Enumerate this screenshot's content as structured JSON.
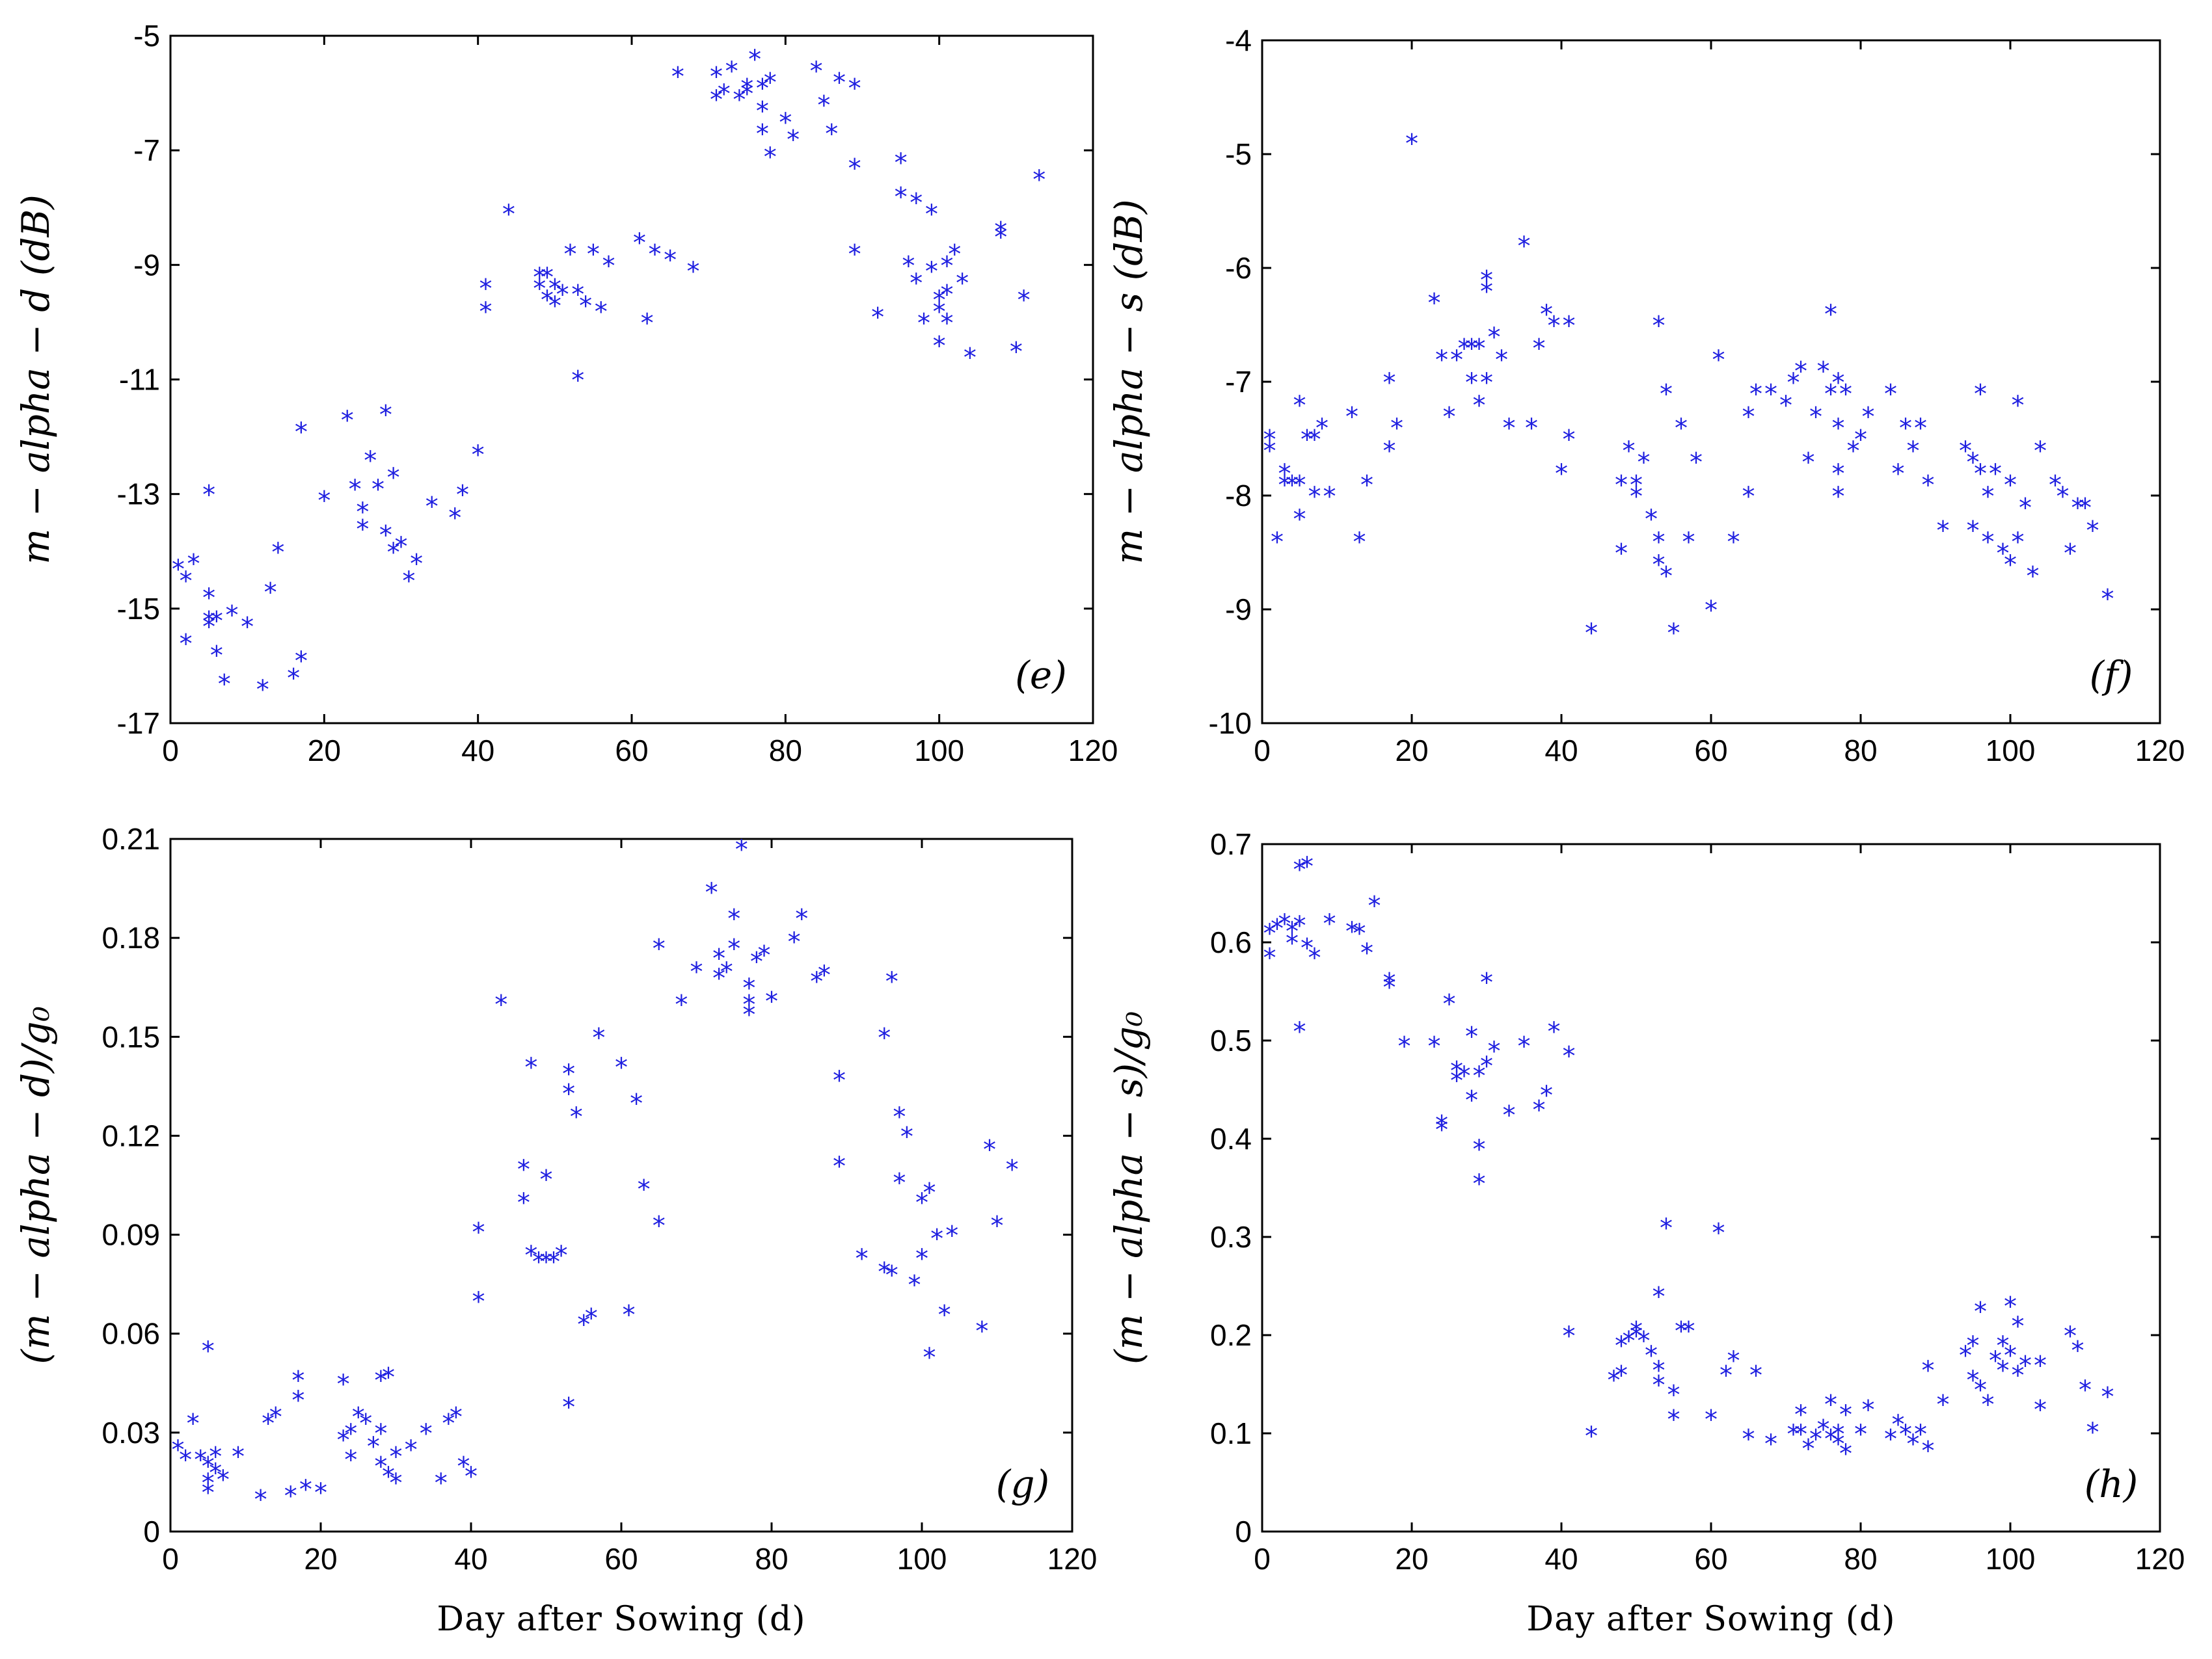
{
  "colors": {
    "marker": "#1f1fe0",
    "axis": "#000000"
  },
  "chart_data": [
    {
      "id": "e",
      "type": "scatter",
      "panel_label": "(e)",
      "ylabel": "m − alpha − d  (dB)",
      "xlabel": "",
      "xlim": [
        0,
        120
      ],
      "ylim": [
        -17,
        -5
      ],
      "xticks": [
        "0",
        "20",
        "40",
        "60",
        "80",
        "100",
        "120"
      ],
      "yticks": [
        "-17",
        "-15",
        "-13",
        "-11",
        "-9",
        "-7",
        "-5"
      ],
      "series": [
        {
          "name": "m-alpha-d",
          "marker": "*",
          "x": [
            1,
            2,
            2,
            3,
            5,
            5,
            5,
            5,
            6,
            6,
            7,
            8,
            10,
            12,
            13,
            14,
            16,
            17,
            17,
            20,
            23,
            24,
            25,
            25,
            26,
            27,
            28,
            28,
            29,
            29,
            30,
            31,
            32,
            34,
            37,
            38,
            40,
            41,
            41,
            44,
            48,
            48,
            49,
            49,
            50,
            50,
            51,
            52,
            53,
            53,
            54,
            55,
            56,
            57,
            61,
            62,
            63,
            65,
            66,
            68,
            71,
            71,
            72,
            73,
            74,
            75,
            75,
            76,
            77,
            77,
            77,
            78,
            78,
            80,
            81,
            84,
            85,
            86,
            87,
            89,
            89,
            89,
            92,
            95,
            95,
            96,
            97,
            97,
            98,
            99,
            99,
            100,
            100,
            100,
            101,
            101,
            101,
            102,
            103,
            104,
            108,
            108,
            110,
            111,
            113
          ],
          "y": [
            -14.3,
            -14.5,
            -15.6,
            -14.2,
            -15.2,
            -15.3,
            -13.0,
            -14.8,
            -15.8,
            -15.2,
            -16.3,
            -15.1,
            -15.3,
            -16.4,
            -14.7,
            -14.0,
            -16.2,
            -15.9,
            -11.9,
            -13.1,
            -11.7,
            -12.9,
            -13.3,
            -13.6,
            -12.4,
            -12.9,
            -11.6,
            -13.7,
            -12.7,
            -14.0,
            -13.9,
            -14.5,
            -14.2,
            -13.2,
            -13.4,
            -13.0,
            -12.3,
            -9.4,
            -9.8,
            -8.1,
            -9.2,
            -9.4,
            -9.6,
            -9.2,
            -9.4,
            -9.7,
            -9.5,
            -8.8,
            -9.5,
            -11.0,
            -9.7,
            -8.8,
            -9.8,
            -9.0,
            -8.6,
            -10.0,
            -8.8,
            -8.9,
            -5.7,
            -9.1,
            -6.1,
            -5.7,
            -6.0,
            -5.6,
            -6.1,
            -5.9,
            -6.0,
            -5.4,
            -5.9,
            -6.3,
            -6.7,
            -7.1,
            -5.8,
            -6.5,
            -6.8,
            -5.6,
            -6.2,
            -6.7,
            -5.8,
            -5.9,
            -7.3,
            -8.8,
            -9.9,
            -7.2,
            -7.8,
            -9.0,
            -7.9,
            -9.3,
            -10.0,
            -8.1,
            -9.1,
            -9.6,
            -9.8,
            -10.4,
            -9.0,
            -9.5,
            -10.0,
            -8.8,
            -9.3,
            -10.6,
            -8.5,
            -8.4,
            -10.5,
            -9.6,
            -7.5
          ]
        }
      ]
    },
    {
      "id": "f",
      "type": "scatter",
      "panel_label": "(f)",
      "ylabel": "m − alpha − s  (dB)",
      "xlabel": "",
      "xlim": [
        0,
        120
      ],
      "ylim": [
        -10,
        -4
      ],
      "xticks": [
        "0",
        "20",
        "40",
        "60",
        "80",
        "100",
        "120"
      ],
      "yticks": [
        "-10",
        "-9",
        "-8",
        "-7",
        "-6",
        "-5",
        "-4"
      ],
      "series": [
        {
          "name": "m-alpha-s",
          "marker": "*",
          "x": [
            1,
            1,
            2,
            3,
            3,
            4,
            5,
            5,
            5,
            6,
            7,
            7,
            8,
            9,
            12,
            13,
            14,
            17,
            17,
            18,
            20,
            23,
            24,
            25,
            26,
            27,
            28,
            28,
            29,
            29,
            30,
            30,
            30,
            31,
            32,
            33,
            35,
            36,
            37,
            38,
            39,
            40,
            41,
            41,
            44,
            48,
            48,
            49,
            50,
            50,
            51,
            52,
            53,
            53,
            53,
            54,
            54,
            55,
            56,
            57,
            58,
            60,
            61,
            63,
            65,
            65,
            66,
            68,
            70,
            71,
            72,
            73,
            74,
            75,
            76,
            76,
            77,
            77,
            77,
            77,
            78,
            79,
            80,
            81,
            84,
            85,
            86,
            87,
            88,
            89,
            91,
            94,
            95,
            95,
            96,
            96,
            97,
            97,
            98,
            99,
            100,
            100,
            101,
            101,
            102,
            103,
            104,
            106,
            107,
            108,
            109,
            110,
            111,
            113
          ],
          "y": [
            -7.5,
            -7.6,
            -8.4,
            -7.9,
            -7.8,
            -7.9,
            -7.2,
            -8.2,
            -7.9,
            -7.5,
            -8.0,
            -7.5,
            -7.4,
            -8.0,
            -7.3,
            -8.4,
            -7.9,
            -7.0,
            -7.6,
            -7.4,
            -4.9,
            -6.3,
            -6.8,
            -7.3,
            -6.8,
            -6.7,
            -7.0,
            -6.7,
            -6.7,
            -7.2,
            -6.1,
            -6.2,
            -7.0,
            -6.6,
            -6.8,
            -7.4,
            -5.8,
            -7.4,
            -6.7,
            -6.4,
            -6.5,
            -7.8,
            -7.5,
            -6.5,
            -9.2,
            -7.9,
            -8.5,
            -7.6,
            -7.9,
            -8.0,
            -7.7,
            -8.2,
            -8.4,
            -8.6,
            -6.5,
            -8.7,
            -7.1,
            -9.2,
            -7.4,
            -8.4,
            -7.7,
            -9.0,
            -6.8,
            -8.4,
            -7.3,
            -8.0,
            -7.1,
            -7.1,
            -7.2,
            -7.0,
            -6.9,
            -7.7,
            -7.3,
            -6.9,
            -6.4,
            -7.1,
            -7.4,
            -7.8,
            -8.0,
            -7.0,
            -7.1,
            -7.6,
            -7.5,
            -7.3,
            -7.1,
            -7.8,
            -7.4,
            -7.6,
            -7.4,
            -7.9,
            -8.3,
            -7.6,
            -7.7,
            -8.3,
            -7.1,
            -7.8,
            -8.0,
            -8.4,
            -7.8,
            -8.5,
            -7.9,
            -8.6,
            -7.2,
            -8.4,
            -8.1,
            -8.7,
            -7.6,
            -7.9,
            -8.0,
            -8.5,
            -8.1,
            -8.1,
            -8.3,
            -8.9
          ]
        }
      ]
    },
    {
      "id": "g",
      "type": "scatter",
      "panel_label": "(g)",
      "ylabel": "(m − alpha − d)/g₀",
      "xlabel": "Day  after  Sowing  (d)",
      "xlim": [
        0,
        120
      ],
      "ylim": [
        0,
        0.21
      ],
      "xticks": [
        "0",
        "20",
        "40",
        "60",
        "80",
        "100",
        "120"
      ],
      "yticks": [
        "0",
        "0.03",
        "0.06",
        "0.09",
        "0.12",
        "0.15",
        "0.18",
        "0.21"
      ],
      "series": [
        {
          "name": "(m-alpha-d)/g0",
          "marker": "*",
          "x": [
            1,
            2,
            3,
            4,
            5,
            5,
            5,
            5,
            6,
            6,
            7,
            9,
            12,
            13,
            14,
            16,
            17,
            17,
            18,
            20,
            23,
            23,
            24,
            24,
            25,
            26,
            27,
            28,
            28,
            28,
            29,
            29,
            30,
            30,
            32,
            34,
            36,
            37,
            38,
            39,
            40,
            41,
            41,
            44,
            47,
            47,
            48,
            48,
            49,
            50,
            50,
            51,
            52,
            53,
            53,
            53,
            54,
            55,
            56,
            57,
            60,
            61,
            62,
            63,
            65,
            65,
            68,
            70,
            72,
            73,
            73,
            74,
            75,
            75,
            76,
            77,
            77,
            77,
            78,
            79,
            80,
            83,
            84,
            86,
            87,
            89,
            89,
            92,
            95,
            95,
            96,
            96,
            97,
            97,
            98,
            99,
            100,
            100,
            101,
            101,
            102,
            103,
            104,
            108,
            109,
            110,
            112
          ],
          "y": [
            0.025,
            0.022,
            0.033,
            0.022,
            0.02,
            0.015,
            0.055,
            0.012,
            0.023,
            0.018,
            0.016,
            0.023,
            0.01,
            0.033,
            0.035,
            0.011,
            0.04,
            0.046,
            0.013,
            0.012,
            0.045,
            0.028,
            0.03,
            0.022,
            0.035,
            0.033,
            0.026,
            0.046,
            0.03,
            0.02,
            0.047,
            0.017,
            0.023,
            0.015,
            0.025,
            0.03,
            0.015,
            0.033,
            0.035,
            0.02,
            0.017,
            0.091,
            0.07,
            0.16,
            0.11,
            0.1,
            0.141,
            0.084,
            0.082,
            0.082,
            0.107,
            0.082,
            0.084,
            0.133,
            0.139,
            0.038,
            0.126,
            0.063,
            0.065,
            0.15,
            0.141,
            0.066,
            0.13,
            0.104,
            0.177,
            0.093,
            0.16,
            0.17,
            0.194,
            0.174,
            0.168,
            0.17,
            0.177,
            0.186,
            0.207,
            0.165,
            0.16,
            0.157,
            0.173,
            0.175,
            0.161,
            0.179,
            0.186,
            0.167,
            0.169,
            0.137,
            0.111,
            0.083,
            0.079,
            0.15,
            0.078,
            0.167,
            0.126,
            0.106,
            0.12,
            0.075,
            0.1,
            0.083,
            0.103,
            0.053,
            0.089,
            0.066,
            0.09,
            0.061,
            0.116,
            0.093,
            0.11
          ]
        }
      ]
    },
    {
      "id": "h",
      "type": "scatter",
      "panel_label": "(h)",
      "ylabel": "(m − alpha − s)/g₀",
      "xlabel": "Day  after  Sowing  (d)",
      "xlim": [
        0,
        120
      ],
      "ylim": [
        0,
        0.7
      ],
      "xticks": [
        "0",
        "20",
        "40",
        "60",
        "80",
        "100",
        "120"
      ],
      "yticks": [
        "0",
        "0.1",
        "0.2",
        "0.3",
        "0.4",
        "0.5",
        "0.6",
        "0.7"
      ],
      "series": [
        {
          "name": "(m-alpha-s)/g0",
          "marker": "*",
          "x": [
            1,
            1,
            2,
            3,
            4,
            4,
            5,
            5,
            5,
            6,
            6,
            7,
            9,
            12,
            13,
            14,
            15,
            17,
            17,
            19,
            23,
            24,
            24,
            25,
            26,
            26,
            27,
            28,
            28,
            29,
            29,
            29,
            30,
            30,
            31,
            33,
            35,
            37,
            38,
            39,
            41,
            41,
            44,
            47,
            48,
            48,
            49,
            50,
            50,
            51,
            52,
            53,
            53,
            53,
            54,
            55,
            55,
            56,
            57,
            60,
            61,
            62,
            63,
            65,
            66,
            68,
            71,
            72,
            72,
            73,
            74,
            75,
            76,
            76,
            77,
            77,
            78,
            78,
            80,
            81,
            84,
            85,
            86,
            87,
            88,
            89,
            89,
            91,
            94,
            95,
            95,
            96,
            96,
            97,
            98,
            99,
            99,
            100,
            100,
            101,
            101,
            102,
            104,
            104,
            108,
            109,
            110,
            111,
            113
          ],
          "y": [
            0.585,
            0.61,
            0.615,
            0.62,
            0.6,
            0.612,
            0.675,
            0.51,
            0.618,
            0.678,
            0.595,
            0.585,
            0.62,
            0.612,
            0.61,
            0.59,
            0.638,
            0.555,
            0.56,
            0.495,
            0.495,
            0.41,
            0.415,
            0.538,
            0.46,
            0.47,
            0.465,
            0.505,
            0.44,
            0.39,
            0.355,
            0.465,
            0.475,
            0.56,
            0.49,
            0.425,
            0.495,
            0.43,
            0.445,
            0.51,
            0.485,
            0.2,
            0.098,
            0.155,
            0.19,
            0.16,
            0.195,
            0.205,
            0.2,
            0.195,
            0.18,
            0.165,
            0.15,
            0.24,
            0.31,
            0.14,
            0.115,
            0.205,
            0.205,
            0.115,
            0.305,
            0.16,
            0.175,
            0.095,
            0.16,
            0.09,
            0.1,
            0.1,
            0.12,
            0.085,
            0.095,
            0.105,
            0.13,
            0.095,
            0.09,
            0.1,
            0.08,
            0.12,
            0.1,
            0.125,
            0.095,
            0.11,
            0.1,
            0.09,
            0.1,
            0.083,
            0.165,
            0.13,
            0.18,
            0.19,
            0.155,
            0.145,
            0.225,
            0.13,
            0.175,
            0.165,
            0.19,
            0.18,
            0.23,
            0.21,
            0.16,
            0.17,
            0.125,
            0.17,
            0.2,
            0.185,
            0.145,
            0.102,
            0.138
          ]
        }
      ]
    }
  ]
}
